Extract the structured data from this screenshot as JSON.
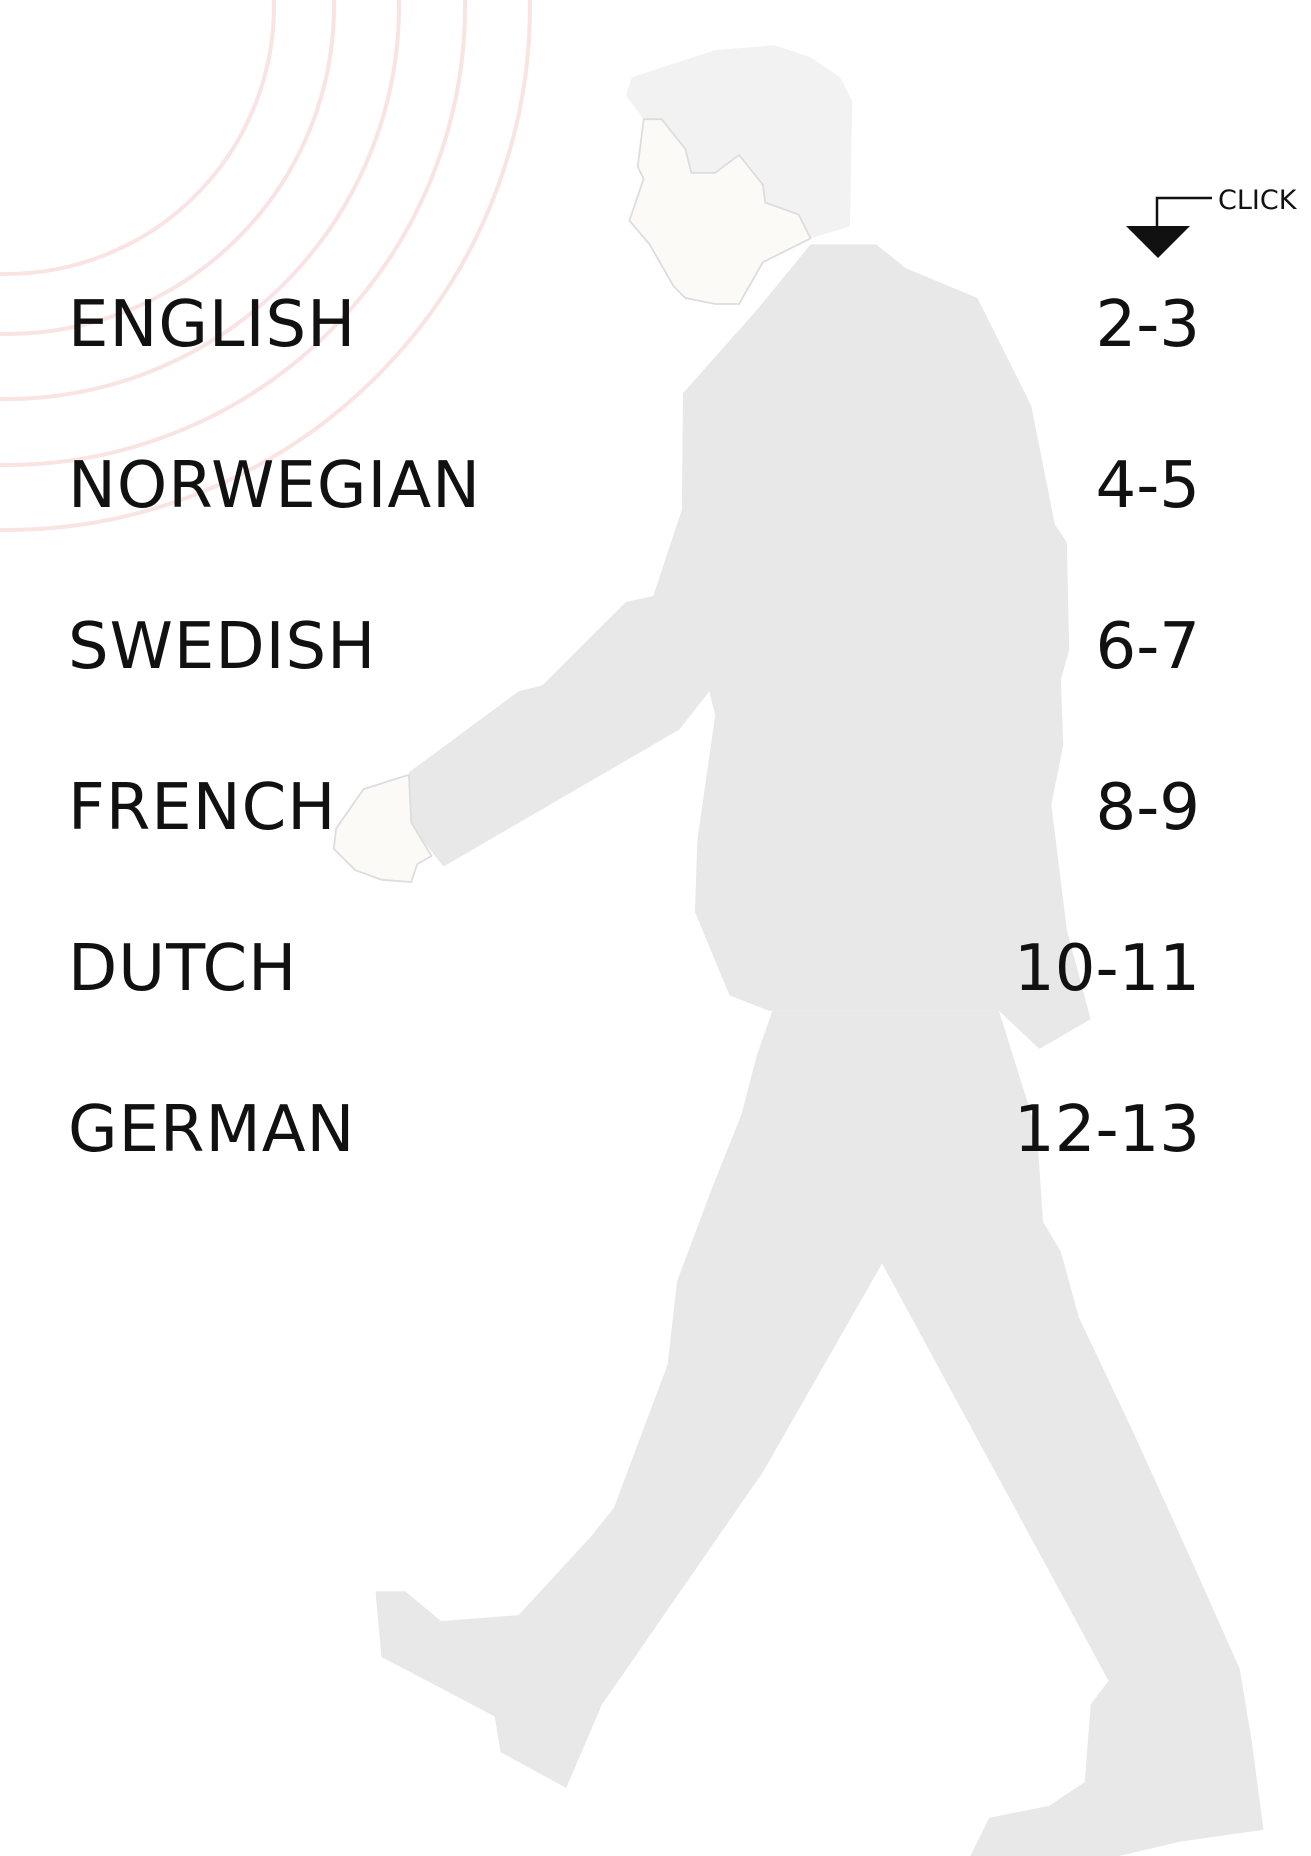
{
  "click_label": "CLICK",
  "rows": [
    {
      "language": "ENGLISH",
      "range": "2-3"
    },
    {
      "language": "NORWEGIAN",
      "range": "4-5"
    },
    {
      "language": "SWEDISH",
      "range": "6-7"
    },
    {
      "language": "FRENCH",
      "range": "8-9"
    },
    {
      "language": "DUTCH",
      "range": "10-11"
    },
    {
      "language": "GERMAN",
      "range": "12-13"
    }
  ]
}
